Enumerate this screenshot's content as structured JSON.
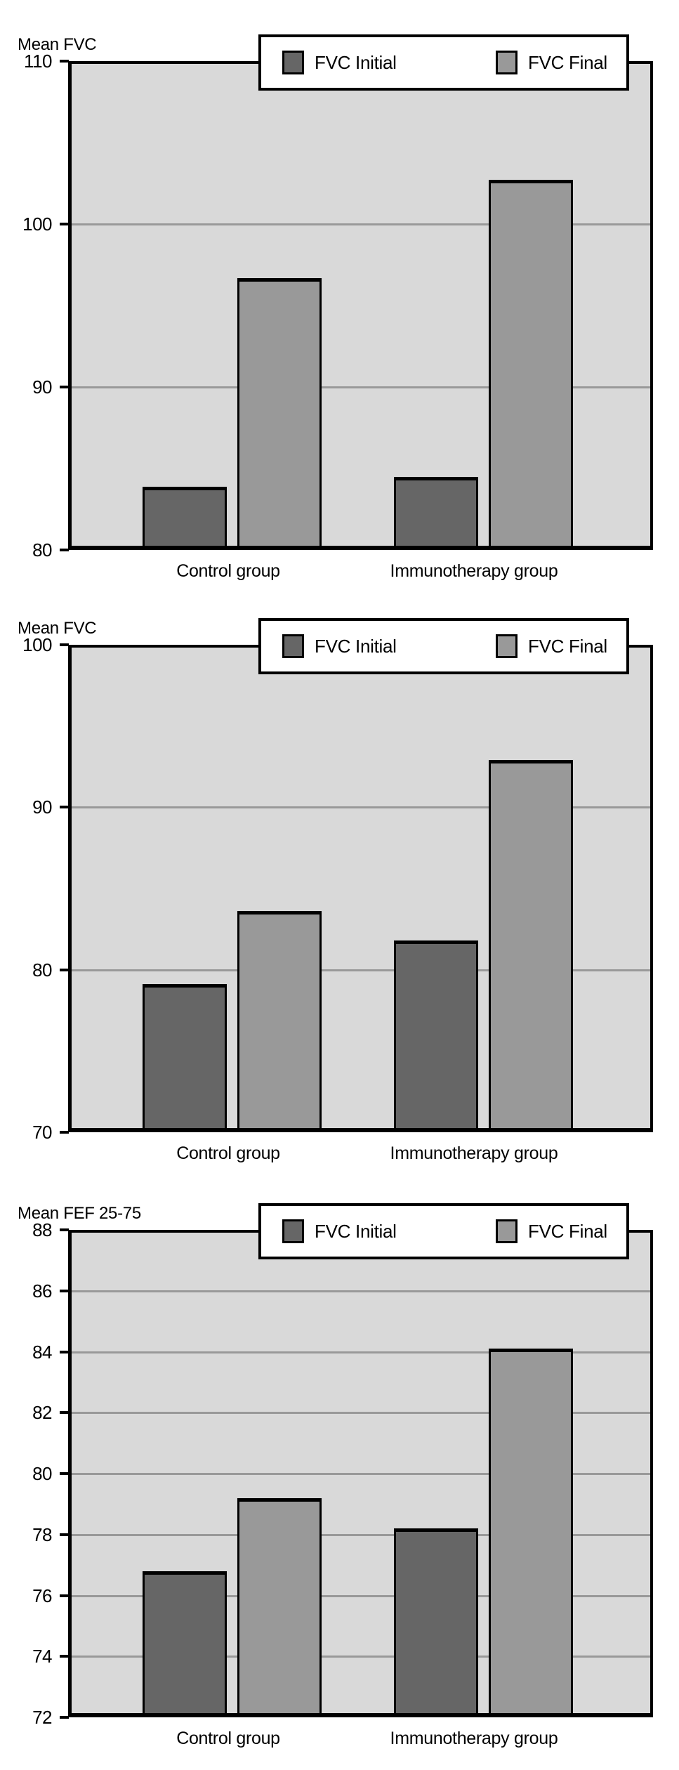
{
  "figure": {
    "background": "#ffffff"
  },
  "colors": {
    "initial_bar": "#666666",
    "final_bar": "#999999",
    "plot_background": "#d9d9d9",
    "gridline": "#999999",
    "axis": "#000000",
    "legend_background": "#ffffff",
    "text": "#000000"
  },
  "chart_data": [
    {
      "type": "bar",
      "title": "Mean FVC",
      "categories": [
        "Control group",
        "Immunotherapy group"
      ],
      "series": [
        {
          "name": "FVC Initial",
          "color": "#666666",
          "values": [
            83.9,
            84.5
          ]
        },
        {
          "name": "FVC Final",
          "color": "#999999",
          "values": [
            96.7,
            102.7
          ]
        }
      ],
      "xlabel": "",
      "ylabel": "Mean FVC",
      "ylim": [
        80,
        110
      ],
      "yticks": [
        80,
        90,
        100,
        110
      ],
      "grid": true,
      "legend_position": "top"
    },
    {
      "type": "bar",
      "title": "Mean FVC",
      "categories": [
        "Control group",
        "Immunotherapy group"
      ],
      "series": [
        {
          "name": "FVC Initial",
          "color": "#666666",
          "values": [
            79.1,
            81.8
          ]
        },
        {
          "name": "FVC Final",
          "color": "#999999",
          "values": [
            83.6,
            92.9
          ]
        }
      ],
      "xlabel": "",
      "ylabel": "Mean FVC",
      "ylim": [
        70,
        100
      ],
      "yticks": [
        70,
        80,
        90,
        100
      ],
      "grid": true,
      "legend_position": "top"
    },
    {
      "type": "bar",
      "title": "Mean FEF 25-75",
      "categories": [
        "Control group",
        "Immunotherapy group"
      ],
      "series": [
        {
          "name": "FVC Initial",
          "color": "#666666",
          "values": [
            76.8,
            78.2
          ]
        },
        {
          "name": "FVC Final",
          "color": "#999999",
          "values": [
            79.2,
            84.1
          ]
        }
      ],
      "xlabel": "",
      "ylabel": "Mean FEF 25-75",
      "ylim": [
        72,
        88
      ],
      "yticks": [
        72,
        74,
        76,
        78,
        80,
        82,
        84,
        86,
        88
      ],
      "grid": true,
      "legend_position": "top"
    }
  ]
}
